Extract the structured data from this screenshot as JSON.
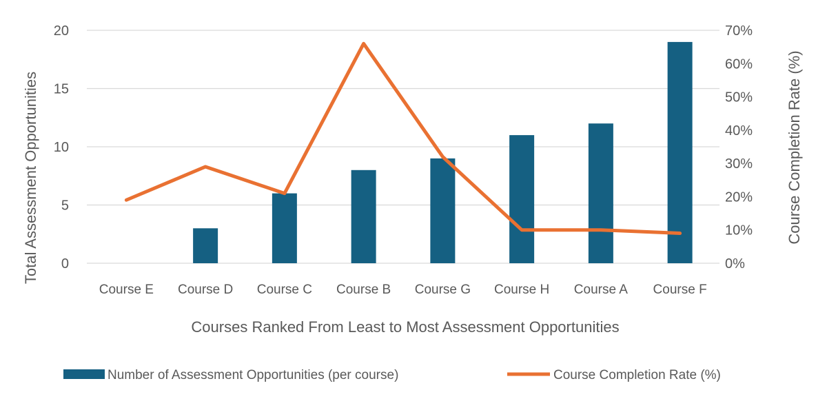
{
  "chart_data": {
    "type": "bar+line",
    "title": "",
    "xlabel": "Courses Ranked From Least to Most Assessment Opportunities",
    "ylabel": "Total Assessment Opportunities",
    "y2label": "Course Completion Rate (%)",
    "categories": [
      "Course E",
      "Course D",
      "Course C",
      "Course B",
      "Course G",
      "Course H",
      "Course A",
      "Course F"
    ],
    "ylim": [
      0,
      20
    ],
    "yticks": [
      "0",
      "5",
      "10",
      "15",
      "20"
    ],
    "y2lim": [
      0,
      70
    ],
    "y2ticks": [
      "0%",
      "10%",
      "20%",
      "30%",
      "40%",
      "50%",
      "60%",
      "70%"
    ],
    "grid": true,
    "legend_position": "bottom",
    "series": [
      {
        "name": "Number of Assessment Opportunities (per course)",
        "type": "bar",
        "axis": "left",
        "color": "#156082",
        "values": [
          0,
          3,
          6,
          8,
          9,
          11,
          12,
          19
        ]
      },
      {
        "name": "Course Completion Rate (%)",
        "type": "line",
        "axis": "right",
        "color": "#E97132",
        "values": [
          19,
          29,
          21,
          66,
          32,
          10,
          10,
          9
        ]
      }
    ]
  }
}
